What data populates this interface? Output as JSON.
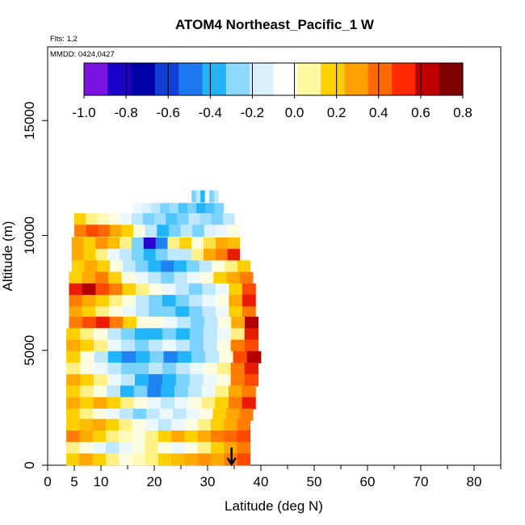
{
  "chart_data": {
    "type": "heatmap",
    "title": "ATOM4 Northeast_Pacific_1 W",
    "subtitle_lines": [
      "Flts: 1,2",
      "MMDD: 0424,0427"
    ],
    "xlabel": "Latitude (deg N)",
    "ylabel": "Altitude (m)",
    "xlim": [
      0,
      85
    ],
    "ylim": [
      0,
      18000
    ],
    "x_ticks": [
      0,
      5,
      10,
      20,
      30,
      40,
      50,
      60,
      70,
      80
    ],
    "y_ticks": [
      0,
      5000,
      10000,
      15000
    ],
    "colorbar": {
      "min": -1.0,
      "max": 0.8,
      "tick_values": [
        -1.0,
        -0.8,
        -0.6,
        -0.4,
        -0.2,
        0.0,
        0.2,
        0.4,
        0.6,
        0.8
      ],
      "tick_labels": [
        "-1.0",
        "-0.8",
        "-0.6",
        "-0.4",
        "-0.2",
        "0.0",
        "0.2",
        "0.4",
        "0.6",
        "0.8"
      ],
      "colors": [
        "#7b12e0",
        "#1a00c8",
        "#0000a8",
        "#1040d8",
        "#1e78f0",
        "#22b4f8",
        "#8cd8ff",
        "#d8f0ff",
        "#ffffff",
        "#fff8a0",
        "#ffd000",
        "#ffa000",
        "#ff6a00",
        "#ff2800",
        "#c00000",
        "#800000"
      ]
    },
    "arrow_marker": {
      "latitude": 34.5,
      "altitude": 0
    },
    "legs": [
      {
        "alt": 11700,
        "lat_min": 27,
        "lat_max": 32,
        "values": [
          -0.3,
          -0.2,
          -0.4,
          -0.1,
          -0.3,
          -0.2
        ]
      },
      {
        "alt": 11150,
        "lat_min": 16,
        "lat_max": 33,
        "values": [
          -0.1,
          -0.15,
          -0.2,
          -0.3,
          -0.25,
          -0.35,
          -0.3,
          -0.4,
          -0.35,
          -0.3
        ]
      },
      {
        "alt": 10700,
        "lat_min": 5,
        "lat_max": 35,
        "values": [
          0.2,
          0.1,
          0.05,
          0.0,
          -0.1,
          -0.2,
          -0.3,
          -0.25,
          -0.35,
          -0.3,
          -0.2,
          -0.25,
          -0.3,
          -0.2
        ]
      },
      {
        "alt": 10200,
        "lat_min": 5,
        "lat_max": 36,
        "values": [
          0.4,
          0.5,
          0.45,
          0.3,
          0.2,
          0.0,
          -0.2,
          -0.4,
          -0.3,
          -0.2,
          -0.3,
          -0.15,
          -0.1,
          0.0
        ]
      },
      {
        "alt": 9650,
        "lat_min": 4.5,
        "lat_max": 36,
        "values": [
          0.3,
          0.2,
          0.35,
          0.25,
          0.1,
          -0.3,
          -0.9,
          -0.5,
          0.1,
          0.2,
          0.0,
          0.15,
          0.3,
          0.25
        ]
      },
      {
        "alt": 9150,
        "lat_min": 4.5,
        "lat_max": 36,
        "values": [
          0.3,
          0.2,
          0.1,
          -0.1,
          -0.2,
          -0.3,
          -0.4,
          -0.3,
          -0.2,
          -0.2,
          0.1,
          0.3,
          0.4,
          0.6
        ]
      },
      {
        "alt": 8650,
        "lat_min": 4.5,
        "lat_max": 38,
        "values": [
          0.2,
          0.3,
          0.2,
          0.0,
          -0.2,
          -0.3,
          -0.4,
          -0.5,
          -0.4,
          -0.3,
          -0.2,
          0.0,
          0.1,
          0.2
        ]
      },
      {
        "alt": 8150,
        "lat_min": 4,
        "lat_max": 38.5,
        "values": [
          0.2,
          0.3,
          0.4,
          0.2,
          0.0,
          -0.1,
          -0.2,
          -0.3,
          -0.2,
          -0.1,
          0.0,
          0.2,
          0.3,
          0.4
        ]
      },
      {
        "alt": 7650,
        "lat_min": 4,
        "lat_max": 39,
        "values": [
          0.6,
          0.7,
          0.5,
          0.4,
          0.2,
          0.1,
          0.0,
          -0.1,
          -0.2,
          -0.3,
          -0.2,
          -0.1,
          0.2,
          0.5
        ]
      },
      {
        "alt": 7150,
        "lat_min": 4,
        "lat_max": 39,
        "values": [
          0.4,
          0.3,
          0.2,
          0.1,
          0.0,
          -0.2,
          -0.3,
          -0.4,
          -0.3,
          -0.2,
          -0.1,
          0.0,
          0.3,
          0.6
        ]
      },
      {
        "alt": 6650,
        "lat_min": 4,
        "lat_max": 39,
        "values": [
          0.3,
          0.2,
          0.1,
          0.0,
          -0.1,
          -0.2,
          -0.3,
          -0.3,
          -0.4,
          -0.3,
          -0.2,
          -0.1,
          0.2,
          0.4
        ]
      },
      {
        "alt": 6200,
        "lat_min": 4,
        "lat_max": 39.5,
        "values": [
          0.4,
          0.5,
          0.6,
          0.4,
          0.2,
          0.0,
          0.0,
          -0.1,
          -0.2,
          -0.3,
          -0.2,
          0.0,
          0.3,
          0.7
        ]
      },
      {
        "alt": 5700,
        "lat_min": 3.5,
        "lat_max": 39.5,
        "values": [
          0.2,
          0.1,
          0.0,
          -0.2,
          -0.3,
          -0.4,
          -0.4,
          -0.3,
          -0.4,
          -0.3,
          -0.2,
          -0.1,
          0.1,
          0.6
        ]
      },
      {
        "alt": 5200,
        "lat_min": 3.5,
        "lat_max": 39.5,
        "values": [
          0.3,
          0.2,
          0.1,
          -0.1,
          -0.2,
          -0.3,
          -0.2,
          -0.1,
          -0.2,
          -0.3,
          -0.2,
          0.0,
          0.4,
          0.5
        ]
      },
      {
        "alt": 4700,
        "lat_min": 3.5,
        "lat_max": 40,
        "values": [
          0.2,
          0.0,
          -0.2,
          -0.4,
          -0.5,
          -0.4,
          -0.3,
          -0.5,
          -0.4,
          -0.3,
          -0.2,
          0.0,
          0.5,
          0.7
        ]
      },
      {
        "alt": 4200,
        "lat_min": 3.5,
        "lat_max": 39.5,
        "values": [
          0.1,
          0.0,
          -0.1,
          -0.2,
          -0.3,
          -0.3,
          -0.2,
          -0.3,
          -0.2,
          -0.1,
          0.0,
          0.1,
          0.4,
          0.6
        ]
      },
      {
        "alt": 3700,
        "lat_min": 3.5,
        "lat_max": 39.5,
        "values": [
          0.3,
          0.2,
          0.1,
          -0.1,
          -0.2,
          -0.4,
          -0.5,
          -0.4,
          -0.3,
          -0.2,
          -0.1,
          0.0,
          0.4,
          0.5
        ]
      },
      {
        "alt": 3200,
        "lat_min": 3.5,
        "lat_max": 39,
        "values": [
          0.2,
          0.1,
          0.0,
          -0.2,
          -0.4,
          -0.3,
          -0.5,
          -0.4,
          -0.3,
          -0.2,
          -0.1,
          0.1,
          0.3,
          0.4
        ]
      },
      {
        "alt": 2700,
        "lat_min": 3.5,
        "lat_max": 39,
        "values": [
          0.3,
          0.2,
          0.3,
          0.2,
          0.1,
          0.0,
          -0.1,
          -0.2,
          -0.1,
          0.0,
          0.1,
          0.2,
          0.4,
          0.6
        ]
      },
      {
        "alt": 2200,
        "lat_min": 3.5,
        "lat_max": 38.5,
        "values": [
          0.2,
          0.1,
          0.0,
          -0.1,
          -0.2,
          -0.3,
          -0.2,
          -0.1,
          -0.2,
          -0.1,
          0.0,
          0.2,
          0.3,
          0.4
        ]
      },
      {
        "alt": 1750,
        "lat_min": 3.5,
        "lat_max": 38,
        "values": [
          0.2,
          0.25,
          0.3,
          0.2,
          0.1,
          0.0,
          -0.1,
          -0.2,
          -0.1,
          0.0,
          0.1,
          0.2,
          0.3,
          0.4
        ]
      },
      {
        "alt": 1250,
        "lat_min": 3.5,
        "lat_max": 38,
        "values": [
          0.4,
          0.3,
          0.2,
          0.1,
          0.05,
          0.0,
          0.1,
          0.2,
          0.3,
          0.2,
          0.3,
          0.4,
          0.45,
          0.5
        ]
      },
      {
        "alt": 750,
        "lat_min": 3.5,
        "lat_max": 38,
        "values": [
          0.1,
          0.0,
          -0.1,
          -0.2,
          -0.1,
          0.0,
          0.1,
          0.0,
          -0.1,
          0.0,
          0.1,
          0.2,
          0.3,
          0.4
        ]
      },
      {
        "alt": 250,
        "lat_min": 3.5,
        "lat_max": 38,
        "values": [
          0.2,
          0.3,
          0.2,
          0.1,
          0.0,
          0.05,
          0.1,
          0.2,
          0.25,
          0.3,
          0.35,
          0.3,
          0.4,
          0.5
        ]
      }
    ]
  }
}
